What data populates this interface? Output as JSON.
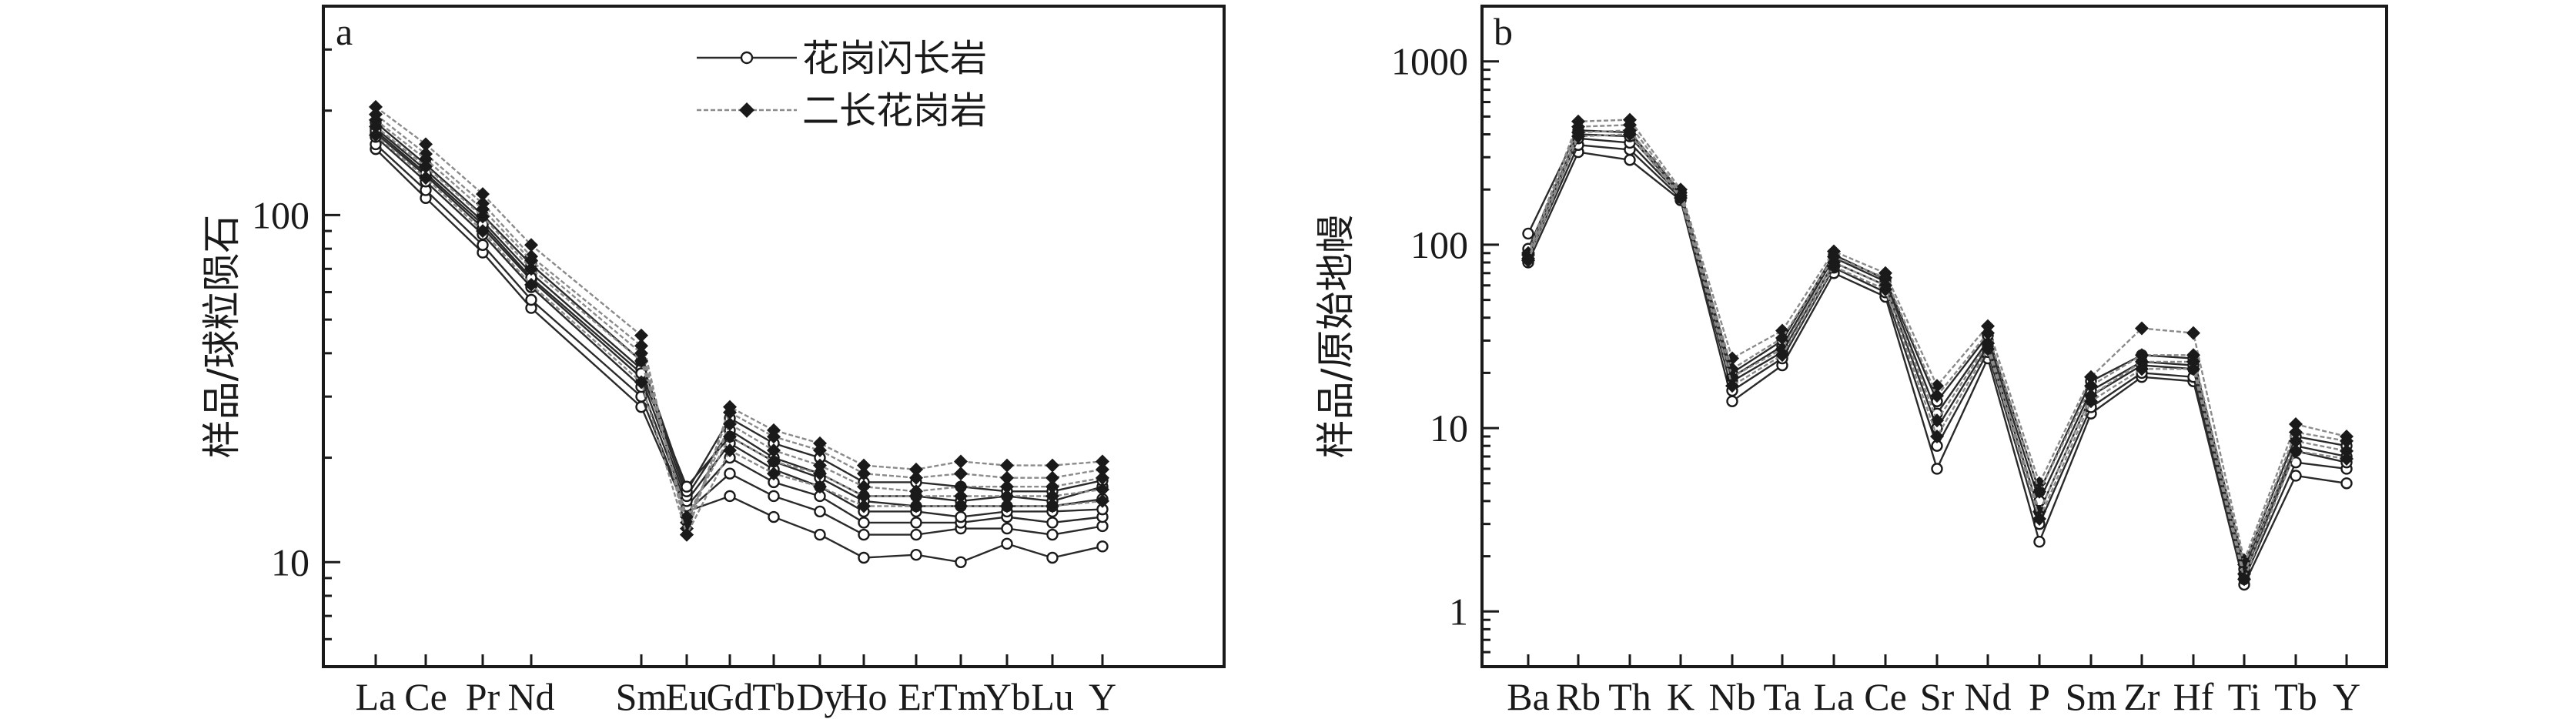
{
  "chart_data": [
    {
      "type": "line",
      "panel_label": "a",
      "y_scale": "log",
      "ylabel": "样品/球粒陨石",
      "ylim": [
        5,
        400
      ],
      "y_ticks": [
        10,
        100
      ],
      "categories": [
        "La",
        "Ce",
        "Pr",
        "Nd",
        "Sm",
        "Eu",
        "Gd",
        "Tb",
        "Dy",
        "Ho",
        "Er",
        "Tm",
        "Yb",
        "Lu",
        "Y"
      ],
      "legend_position": "top-center",
      "series": [
        {
          "name": "花岗闪长岩",
          "group": "granodiorite",
          "values": [
            155,
            112,
            78,
            54,
            28,
            14,
            15.5,
            13.5,
            12,
            10.3,
            10.5,
            10,
            11.3,
            10.3,
            11.1
          ]
        },
        {
          "group": "granodiorite",
          "values": [
            160,
            118,
            82,
            57,
            30,
            14,
            18,
            15.5,
            14,
            12,
            12,
            12.5,
            12.5,
            12,
            12.7
          ]
        },
        {
          "group": "granodiorite",
          "values": [
            168,
            125,
            88,
            62,
            32,
            14.5,
            20,
            17,
            15.5,
            13,
            13,
            13,
            13.5,
            13,
            13.5
          ]
        },
        {
          "group": "granodiorite",
          "values": [
            172,
            130,
            92,
            65,
            34,
            15,
            22,
            18.5,
            16.5,
            14,
            14,
            13.5,
            14,
            14,
            14.2
          ]
        },
        {
          "group": "granodiorite",
          "values": [
            178,
            135,
            96,
            68,
            36,
            15.5,
            24,
            20,
            18,
            15.5,
            15.5,
            15,
            15.5,
            15,
            16.5
          ]
        },
        {
          "group": "granodiorite",
          "values": [
            185,
            140,
            100,
            72,
            38,
            16,
            26,
            22,
            20,
            17,
            17,
            16.5,
            16,
            16,
            17.2
          ]
        },
        {
          "group": "granodiorite",
          "values": [
            175,
            132,
            94,
            66,
            35,
            16.5,
            23,
            19.5,
            17.5,
            15,
            14.5,
            14.5,
            14.5,
            14.5,
            15.2
          ]
        },
        {
          "name": "二长花岗岩",
          "group": "monzogranite",
          "values": [
            205,
            160,
            115,
            82,
            45,
            12,
            28,
            24,
            22,
            19,
            18.5,
            19.5,
            19,
            19,
            19.5
          ]
        },
        {
          "group": "monzogranite",
          "values": [
            195,
            150,
            108,
            76,
            42,
            12.5,
            27,
            23,
            21,
            18,
            17.5,
            18,
            17.5,
            17.5,
            18.5
          ]
        },
        {
          "group": "monzogranite",
          "values": [
            188,
            145,
            104,
            74,
            40,
            13,
            25,
            21,
            19,
            16.5,
            16,
            16.5,
            16.5,
            16.5,
            17.5
          ]
        },
        {
          "group": "monzogranite",
          "values": [
            180,
            138,
            99,
            70,
            38,
            13.5,
            23,
            19.5,
            18,
            15.5,
            15.5,
            15.5,
            15.5,
            15.5,
            16.2
          ]
        },
        {
          "group": "monzogranite",
          "values": [
            170,
            128,
            90,
            63,
            33,
            12,
            21,
            18,
            16.5,
            14.5,
            14.5,
            14.5,
            14.5,
            14.5,
            15
          ]
        }
      ]
    },
    {
      "type": "line",
      "panel_label": "b",
      "y_scale": "log",
      "ylabel": "样品/原始地幔",
      "ylim": [
        0.5,
        2000
      ],
      "y_ticks": [
        1,
        10,
        100,
        1000
      ],
      "categories": [
        "Ba",
        "Rb",
        "Th",
        "K",
        "Nb",
        "Ta",
        "La",
        "Ce",
        "Sr",
        "Nd",
        "P",
        "Sm",
        "Zr",
        "Hf",
        "Ti",
        "Tb",
        "Y"
      ],
      "series": [
        {
          "group": "granodiorite",
          "values": [
            80,
            320,
            290,
            175,
            14,
            22,
            70,
            52,
            6,
            24,
            2.4,
            12,
            19,
            18,
            1.4,
            5.5,
            5
          ]
        },
        {
          "group": "granodiorite",
          "values": [
            85,
            350,
            330,
            180,
            16,
            24,
            75,
            55,
            8,
            26,
            3,
            13,
            20,
            19,
            1.5,
            6.5,
            6
          ]
        },
        {
          "group": "granodiorite",
          "values": [
            90,
            380,
            360,
            185,
            18,
            26,
            80,
            60,
            10,
            28,
            3.5,
            15,
            22,
            21,
            1.6,
            7.5,
            6.5
          ]
        },
        {
          "group": "granodiorite",
          "values": [
            95,
            400,
            390,
            190,
            19,
            28,
            85,
            63,
            12,
            30,
            4,
            16,
            23,
            22,
            1.7,
            8,
            7
          ]
        },
        {
          "group": "granodiorite",
          "values": [
            115,
            420,
            410,
            195,
            20,
            30,
            88,
            65,
            14,
            32,
            4.5,
            18,
            25,
            24,
            1.8,
            9,
            8
          ]
        },
        {
          "group": "monzogranite",
          "values": [
            90,
            470,
            480,
            200,
            24,
            34,
            92,
            70,
            17,
            36,
            5,
            19,
            35,
            33,
            1.9,
            10.5,
            9
          ]
        },
        {
          "group": "monzogranite",
          "values": [
            88,
            440,
            450,
            192,
            21,
            31,
            86,
            66,
            15,
            33,
            4.5,
            17,
            25,
            25,
            1.8,
            9.5,
            8.5
          ]
        },
        {
          "group": "monzogranite",
          "values": [
            84,
            410,
            420,
            185,
            19,
            27,
            80,
            60,
            11,
            29,
            3.5,
            15,
            23,
            23,
            1.6,
            8.5,
            7.5
          ]
        },
        {
          "group": "monzogranite",
          "values": [
            82,
            390,
            400,
            180,
            17,
            25,
            76,
            57,
            9,
            27,
            3.2,
            14,
            21,
            21,
            1.5,
            7.5,
            6.8
          ]
        }
      ]
    }
  ]
}
